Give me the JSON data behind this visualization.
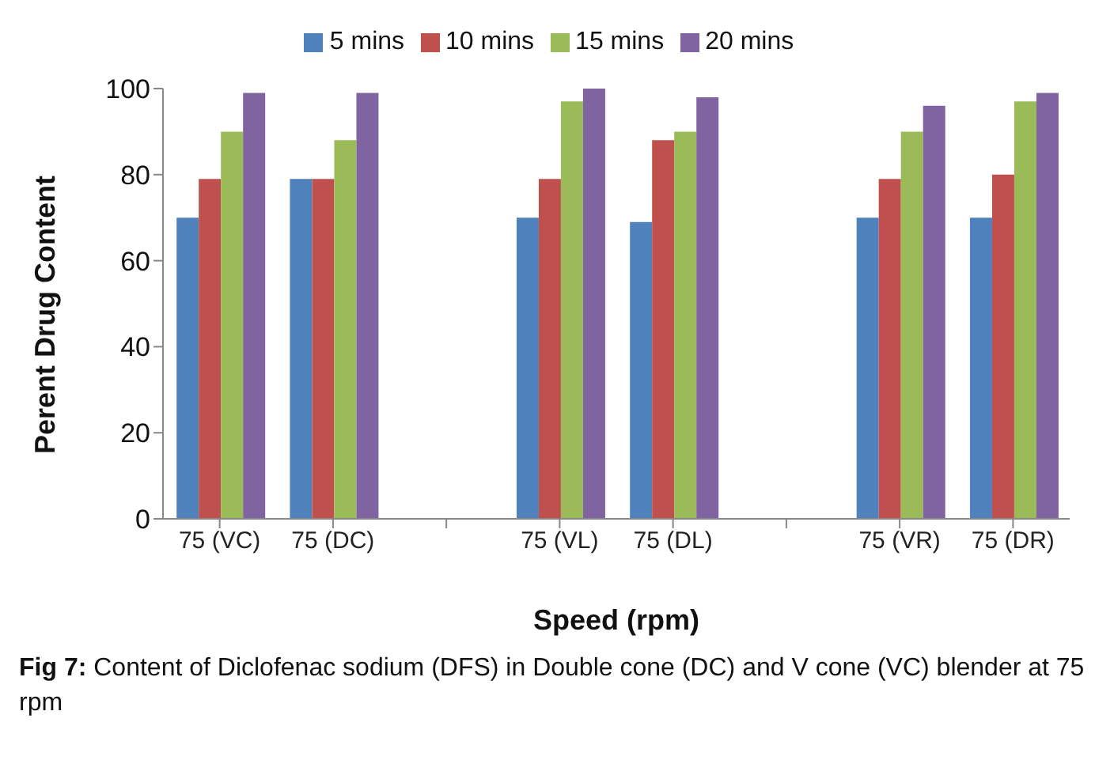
{
  "chart_data": {
    "type": "bar",
    "xlabel": "Speed (rpm)",
    "ylabel": "Perent Drug Content",
    "categories": [
      "75 (VC)",
      "75 (DC)",
      null,
      "75 (VL)",
      "75 (DL)",
      null,
      "75 (VR)",
      "75 (DR)"
    ],
    "series": [
      {
        "name": "5 mins",
        "color": "#4f81bd",
        "values": [
          70,
          79,
          null,
          70,
          69,
          null,
          70,
          70
        ]
      },
      {
        "name": "10 mins",
        "color": "#c0504d",
        "values": [
          79,
          79,
          null,
          79,
          88,
          null,
          79,
          80
        ]
      },
      {
        "name": "15 mins",
        "color": "#9bbb59",
        "values": [
          90,
          88,
          null,
          97,
          90,
          null,
          90,
          97
        ]
      },
      {
        "name": "20 mins",
        "color": "#8064a2",
        "values": [
          99,
          99,
          null,
          100,
          98,
          null,
          96,
          99
        ]
      }
    ],
    "ylim": [
      0,
      100
    ],
    "yticks": [
      0,
      20,
      40,
      60,
      80,
      100
    ],
    "grid": false,
    "legend": "top",
    "annotations": [
      "Fig 7: Content of Diclofenac sodium (DFS) in Double cone (DC) and V cone (VC) blender at 75 rpm"
    ]
  }
}
